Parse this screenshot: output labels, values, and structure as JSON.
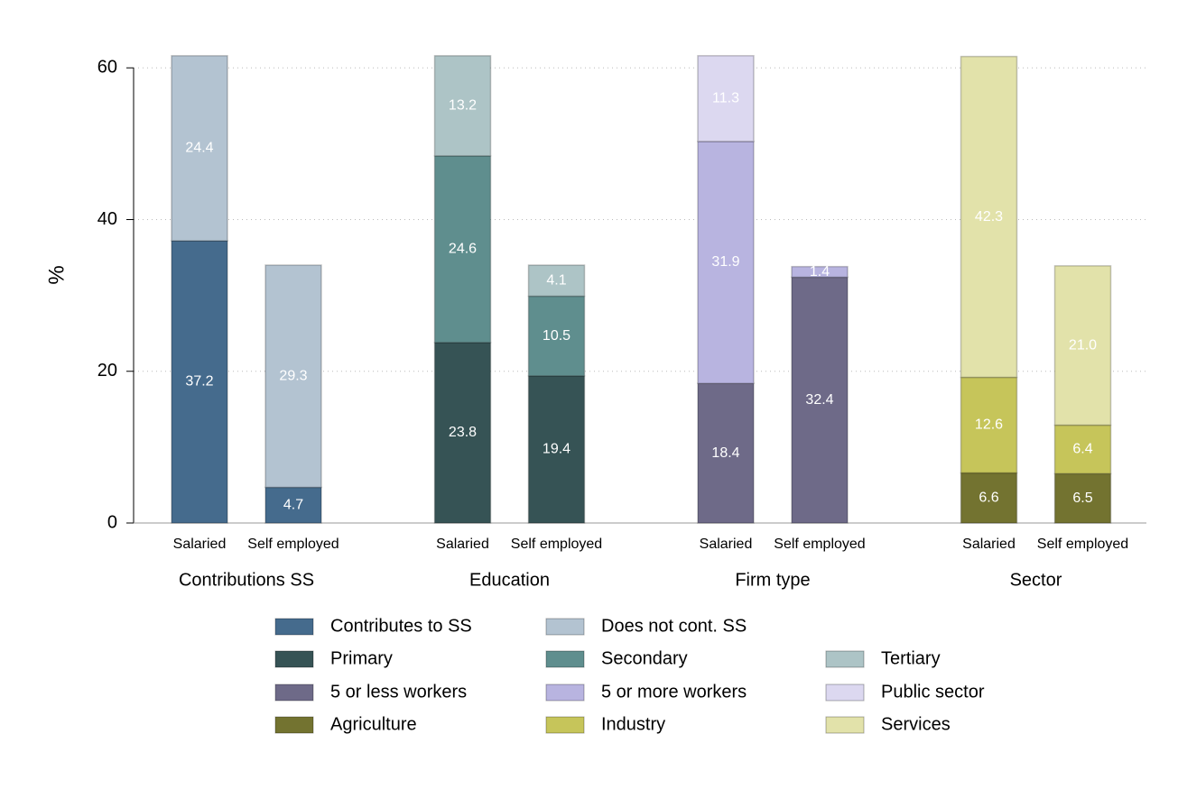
{
  "chart_data": {
    "type": "bar",
    "stacked": true,
    "ylabel": "%",
    "groups": [
      "Contributions SS",
      "Education",
      "Firm type",
      "Sector"
    ],
    "categories": [
      "Salaried",
      "Self employed",
      "Salaried",
      "Self employed",
      "Salaried",
      "Self employed",
      "Salaried",
      "Self employed"
    ],
    "series": [
      {
        "name": "Contributes to SS",
        "color": "#456b8d",
        "values": [
          37.2,
          4.7,
          null,
          null,
          null,
          null,
          null,
          null
        ]
      },
      {
        "name": "Does not cont. SS",
        "color": "#b3c3d1",
        "values": [
          24.4,
          29.3,
          null,
          null,
          null,
          null,
          null,
          null
        ]
      },
      {
        "name": "Primary",
        "color": "#365355",
        "values": [
          null,
          null,
          23.8,
          19.4,
          null,
          null,
          null,
          null
        ]
      },
      {
        "name": "Secondary",
        "color": "#5f8e8e",
        "values": [
          null,
          null,
          24.6,
          10.5,
          null,
          null,
          null,
          null
        ]
      },
      {
        "name": "Tertiary",
        "color": "#adc4c6",
        "values": [
          null,
          null,
          13.2,
          4.1,
          null,
          null,
          null,
          null
        ]
      },
      {
        "name": "5 or less workers",
        "color": "#6e6a88",
        "values": [
          null,
          null,
          null,
          null,
          18.4,
          32.4,
          null,
          null
        ]
      },
      {
        "name": "5 or more workers",
        "color": "#b8b4e0",
        "values": [
          null,
          null,
          null,
          null,
          31.9,
          1.4,
          null,
          null
        ]
      },
      {
        "name": "Public sector",
        "color": "#dcd8f0",
        "values": [
          null,
          null,
          null,
          null,
          11.3,
          null,
          null,
          null
        ]
      },
      {
        "name": "Agriculture",
        "color": "#737330",
        "values": [
          null,
          null,
          null,
          null,
          null,
          null,
          6.6,
          6.5
        ]
      },
      {
        "name": "Industry",
        "color": "#c6c55a",
        "values": [
          null,
          null,
          null,
          null,
          null,
          null,
          12.6,
          6.4
        ]
      },
      {
        "name": "Services",
        "color": "#e2e2aa",
        "values": [
          null,
          null,
          null,
          null,
          null,
          null,
          42.3,
          21.0
        ],
        "value_labels": [
          null,
          null,
          null,
          null,
          null,
          null,
          "42.3",
          "21.0"
        ]
      }
    ],
    "ylim": [
      0,
      62
    ],
    "yticks": [
      0,
      20,
      40,
      60
    ],
    "grid": true
  }
}
